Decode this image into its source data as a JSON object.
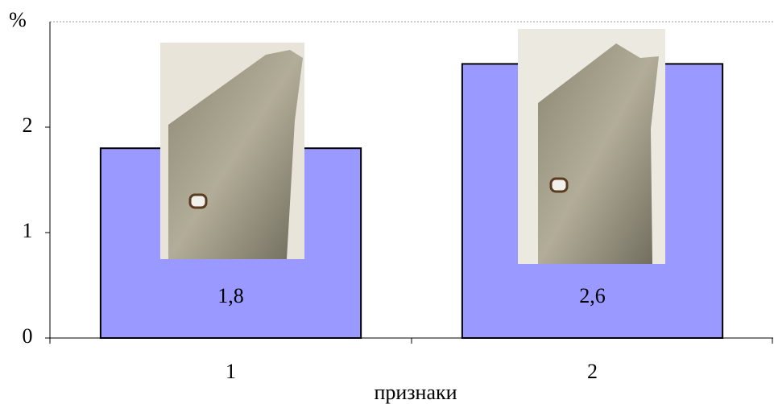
{
  "chart_data": {
    "type": "bar",
    "y_label": "%",
    "x_label": "признаки",
    "categories": [
      "1",
      "2"
    ],
    "values": [
      1.8,
      2.6
    ],
    "value_labels": [
      "1,8",
      "2,6"
    ],
    "color": "#9999ff",
    "ylim": [
      0,
      3
    ],
    "yticks": [
      0,
      1,
      2
    ]
  }
}
